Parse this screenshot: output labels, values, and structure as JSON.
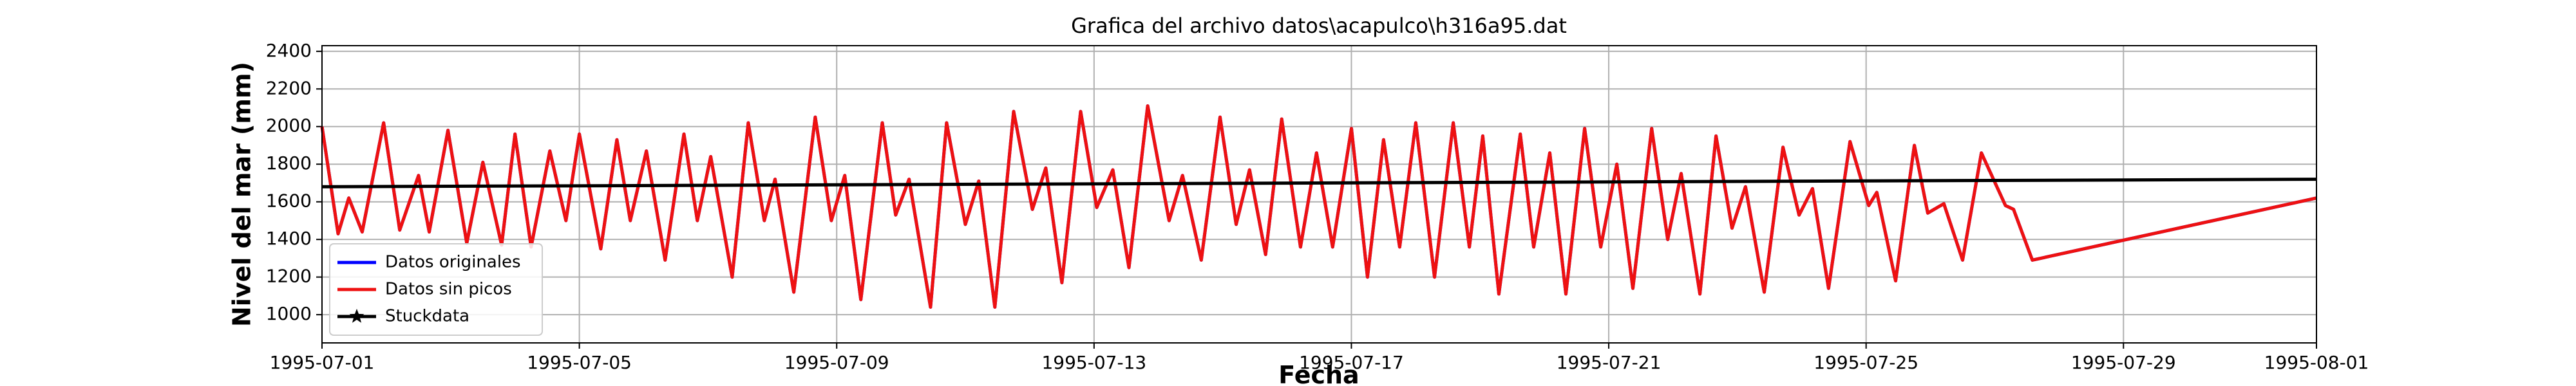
{
  "chart_data": {
    "type": "line",
    "title": "Grafica del archivo datos\\acapulco\\h316a95.dat",
    "xlabel": "Fecha",
    "ylabel": "Nivel del mar (mm)",
    "xlim": [
      "1995-07-01",
      "1995-08-01"
    ],
    "xticks": [
      "1995-07-01",
      "1995-07-05",
      "1995-07-09",
      "1995-07-13",
      "1995-07-17",
      "1995-07-21",
      "1995-07-25",
      "1995-07-29",
      "1995-08-01"
    ],
    "ylim": [
      850,
      2430
    ],
    "yticks": [
      1000,
      1200,
      1400,
      1600,
      1800,
      2000,
      2200,
      2400
    ],
    "grid": true,
    "legend": "lower left",
    "series": [
      {
        "name": "Datos originales",
        "color": "#0000ff",
        "marker": "none",
        "x": [
          "1995-07-01 00:00",
          "1995-07-01 06:00",
          "1995-07-01 10:00",
          "1995-07-01 15:00",
          "1995-07-01 23:00",
          "1995-07-02 05:00",
          "1995-07-02 12:00",
          "1995-07-02 16:00",
          "1995-07-02 23:00",
          "1995-07-03 06:00",
          "1995-07-03 12:00",
          "1995-07-03 19:00",
          "1995-07-04 00:00",
          "1995-07-04 06:00",
          "1995-07-04 13:00",
          "1995-07-04 19:00",
          "1995-07-05 00:00",
          "1995-07-05 08:00",
          "1995-07-05 14:00",
          "1995-07-05 19:00",
          "1995-07-06 01:00",
          "1995-07-06 08:00",
          "1995-07-06 15:00",
          "1995-07-06 20:00",
          "1995-07-07 01:00",
          "1995-07-07 09:00",
          "1995-07-07 15:00",
          "1995-07-07 21:00",
          "1995-07-08 01:00",
          "1995-07-08 08:00",
          "1995-07-08 16:00",
          "1995-07-08 22:00",
          "1995-07-09 03:00",
          "1995-07-09 09:00",
          "1995-07-09 17:00",
          "1995-07-09 22:00",
          "1995-07-10 03:00",
          "1995-07-10 11:00",
          "1995-07-10 17:00",
          "1995-07-11 00:00",
          "1995-07-11 05:00",
          "1995-07-11 11:00",
          "1995-07-11 18:00",
          "1995-07-12 01:00",
          "1995-07-12 06:00",
          "1995-07-12 12:00",
          "1995-07-12 19:00",
          "1995-07-13 01:00",
          "1995-07-13 07:00",
          "1995-07-13 13:00",
          "1995-07-13 20:00",
          "1995-07-14 04:00",
          "1995-07-14 09:00",
          "1995-07-14 16:00",
          "1995-07-14 23:00",
          "1995-07-15 05:00",
          "1995-07-15 10:00",
          "1995-07-15 16:00",
          "1995-07-15 22:00",
          "1995-07-16 05:00",
          "1995-07-16 11:00",
          "1995-07-16 17:00",
          "1995-07-17 00:00",
          "1995-07-17 06:00",
          "1995-07-17 12:00",
          "1995-07-17 18:00",
          "1995-07-18 00:00",
          "1995-07-18 07:00",
          "1995-07-18 14:00",
          "1995-07-18 20:00",
          "1995-07-19 01:00",
          "1995-07-19 07:00",
          "1995-07-19 15:00",
          "1995-07-19 20:00",
          "1995-07-20 02:00",
          "1995-07-20 08:00",
          "1995-07-20 15:00",
          "1995-07-20 21:00",
          "1995-07-21 03:00",
          "1995-07-21 09:00",
          "1995-07-21 16:00",
          "1995-07-21 22:00",
          "1995-07-22 03:00",
          "1995-07-22 10:00",
          "1995-07-22 16:00",
          "1995-07-22 22:00",
          "1995-07-23 03:00",
          "1995-07-23 10:00",
          "1995-07-23 17:00",
          "1995-07-23 23:00",
          "1995-07-24 04:00",
          "1995-07-24 10:00",
          "1995-07-24 18:00",
          "1995-07-25 01:00",
          "1995-07-25 04:00",
          "1995-07-25 11:00",
          "1995-07-25 18:00",
          "1995-07-25 23:00",
          "1995-07-26 05:00",
          "1995-07-26 12:00",
          "1995-07-26 19:00",
          "1995-07-27 04:00",
          "1995-07-27 07:00",
          "1995-07-27 14:00",
          "1995-08-01 00:00"
        ],
        "values": [
          2000,
          1430,
          1620,
          1440,
          2020,
          1450,
          1740,
          1440,
          1980,
          1380,
          1810,
          1370,
          1960,
          1360,
          1870,
          1500,
          1960,
          1350,
          1930,
          1500,
          1870,
          1290,
          1960,
          1500,
          1840,
          1200,
          2020,
          1500,
          1720,
          1120,
          2050,
          1500,
          1740,
          1080,
          2020,
          1530,
          1720,
          1040,
          2020,
          1480,
          1710,
          1040,
          2080,
          1560,
          1780,
          1170,
          2080,
          1570,
          1770,
          1250,
          2110,
          1500,
          1740,
          1290,
          2050,
          1480,
          1770,
          1320,
          2040,
          1360,
          1860,
          1360,
          1990,
          1200,
          1930,
          1360,
          2020,
          1200,
          2020,
          1360,
          1950,
          1110,
          1960,
          1360,
          1860,
          1110,
          1990,
          1360,
          1800,
          1140,
          1990,
          1400,
          1750,
          1110,
          1950,
          1460,
          1680,
          1120,
          1890,
          1530,
          1670,
          1140,
          1920,
          1580,
          1650,
          1180,
          1900,
          1540,
          1590,
          1290,
          1860,
          1580,
          1560,
          1290,
          1620
        ]
      },
      {
        "name": "Datos sin picos",
        "color": "#ee1111",
        "marker": "none",
        "x": [
          "1995-07-01 00:00",
          "1995-07-01 06:00",
          "1995-07-01 10:00",
          "1995-07-01 15:00",
          "1995-07-01 23:00",
          "1995-07-02 05:00",
          "1995-07-02 12:00",
          "1995-07-02 16:00",
          "1995-07-02 23:00",
          "1995-07-03 06:00",
          "1995-07-03 12:00",
          "1995-07-03 19:00",
          "1995-07-04 00:00",
          "1995-07-04 06:00",
          "1995-07-04 13:00",
          "1995-07-04 19:00",
          "1995-07-05 00:00",
          "1995-07-05 08:00",
          "1995-07-05 14:00",
          "1995-07-05 19:00",
          "1995-07-06 01:00",
          "1995-07-06 08:00",
          "1995-07-06 15:00",
          "1995-07-06 20:00",
          "1995-07-07 01:00",
          "1995-07-07 09:00",
          "1995-07-07 15:00",
          "1995-07-07 21:00",
          "1995-07-08 01:00",
          "1995-07-08 08:00",
          "1995-07-08 16:00",
          "1995-07-08 22:00",
          "1995-07-09 03:00",
          "1995-07-09 09:00",
          "1995-07-09 17:00",
          "1995-07-09 22:00",
          "1995-07-10 03:00",
          "1995-07-10 11:00",
          "1995-07-10 17:00",
          "1995-07-11 00:00",
          "1995-07-11 05:00",
          "1995-07-11 11:00",
          "1995-07-11 18:00",
          "1995-07-12 01:00",
          "1995-07-12 06:00",
          "1995-07-12 12:00",
          "1995-07-12 19:00",
          "1995-07-13 01:00",
          "1995-07-13 07:00",
          "1995-07-13 13:00",
          "1995-07-13 20:00",
          "1995-07-14 04:00",
          "1995-07-14 09:00",
          "1995-07-14 16:00",
          "1995-07-14 23:00",
          "1995-07-15 05:00",
          "1995-07-15 10:00",
          "1995-07-15 16:00",
          "1995-07-15 22:00",
          "1995-07-16 05:00",
          "1995-07-16 11:00",
          "1995-07-16 17:00",
          "1995-07-17 00:00",
          "1995-07-17 06:00",
          "1995-07-17 12:00",
          "1995-07-17 18:00",
          "1995-07-18 00:00",
          "1995-07-18 07:00",
          "1995-07-18 14:00",
          "1995-07-18 20:00",
          "1995-07-19 01:00",
          "1995-07-19 07:00",
          "1995-07-19 15:00",
          "1995-07-19 20:00",
          "1995-07-20 02:00",
          "1995-07-20 08:00",
          "1995-07-20 15:00",
          "1995-07-20 21:00",
          "1995-07-21 03:00",
          "1995-07-21 09:00",
          "1995-07-21 16:00",
          "1995-07-21 22:00",
          "1995-07-22 03:00",
          "1995-07-22 10:00",
          "1995-07-22 16:00",
          "1995-07-22 22:00",
          "1995-07-23 03:00",
          "1995-07-23 10:00",
          "1995-07-23 17:00",
          "1995-07-23 23:00",
          "1995-07-24 04:00",
          "1995-07-24 10:00",
          "1995-07-24 18:00",
          "1995-07-25 01:00",
          "1995-07-25 04:00",
          "1995-07-25 11:00",
          "1995-07-25 18:00",
          "1995-07-25 23:00",
          "1995-07-26 05:00",
          "1995-07-26 12:00",
          "1995-07-26 19:00",
          "1995-07-27 04:00",
          "1995-07-27 07:00",
          "1995-07-27 14:00",
          "1995-08-01 00:00"
        ],
        "values": [
          2000,
          1430,
          1620,
          1440,
          2020,
          1450,
          1740,
          1440,
          1980,
          1380,
          1810,
          1370,
          1960,
          1360,
          1870,
          1500,
          1960,
          1350,
          1930,
          1500,
          1870,
          1290,
          1960,
          1500,
          1840,
          1200,
          2020,
          1500,
          1720,
          1120,
          2050,
          1500,
          1740,
          1080,
          2020,
          1530,
          1720,
          1040,
          2020,
          1480,
          1710,
          1040,
          2080,
          1560,
          1780,
          1170,
          2080,
          1570,
          1770,
          1250,
          2110,
          1500,
          1740,
          1290,
          2050,
          1480,
          1770,
          1320,
          2040,
          1360,
          1860,
          1360,
          1990,
          1200,
          1930,
          1360,
          2020,
          1200,
          2020,
          1360,
          1950,
          1110,
          1960,
          1360,
          1860,
          1110,
          1990,
          1360,
          1800,
          1140,
          1990,
          1400,
          1750,
          1110,
          1950,
          1460,
          1680,
          1120,
          1890,
          1530,
          1670,
          1140,
          1920,
          1580,
          1650,
          1180,
          1900,
          1540,
          1590,
          1290,
          1860,
          1580,
          1560,
          1290,
          1620
        ]
      },
      {
        "name": "Stuckdata",
        "color": "#000000",
        "marker": "star",
        "x": [
          "1995-07-01 00:00",
          "1995-08-01 00:00"
        ],
        "values": [
          1680,
          1720
        ]
      }
    ]
  }
}
